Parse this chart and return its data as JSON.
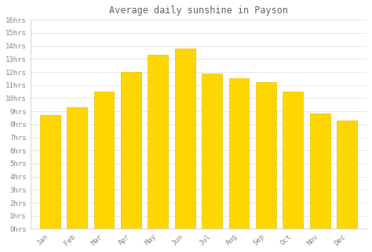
{
  "title": "Average daily sunshine in Payson",
  "categories": [
    "Jan",
    "Feb",
    "Mar",
    "Apr",
    "May",
    "Jun",
    "Jul",
    "Aug",
    "Sep",
    "Oct",
    "Nov",
    "Dec"
  ],
  "values": [
    8.7,
    9.3,
    10.5,
    12.0,
    13.3,
    13.8,
    11.9,
    11.5,
    11.2,
    10.5,
    8.8,
    8.3
  ],
  "bar_color": "#FFD700",
  "bar_edge_color": "#E8C000",
  "background_color": "#ffffff",
  "grid_color": "#dddddd",
  "ylim": [
    0,
    16
  ],
  "yticks": [
    0,
    1,
    2,
    3,
    4,
    5,
    6,
    7,
    8,
    9,
    10,
    11,
    12,
    13,
    14,
    15,
    16
  ],
  "ytick_labels": [
    "0hrs",
    "1hrs",
    "2hrs",
    "3hrs",
    "4hrs",
    "5hrs",
    "6hrs",
    "7hrs",
    "8hrs",
    "9hrs",
    "10hrs",
    "11hrs",
    "12hrs",
    "13hrs",
    "14hrs",
    "15hrs",
    "16hrs"
  ],
  "title_fontsize": 8.5,
  "tick_fontsize": 6.5,
  "title_color": "#666666",
  "tick_color": "#888888",
  "axis_color": "#cccccc",
  "bar_width": 0.75
}
